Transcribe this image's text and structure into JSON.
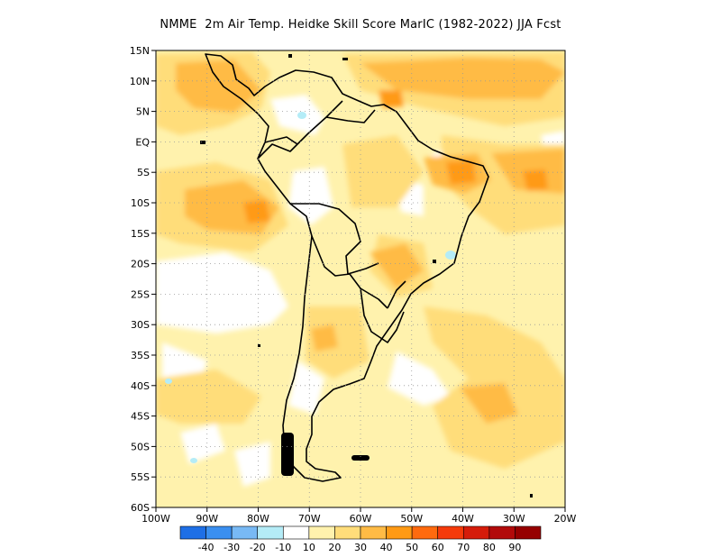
{
  "title": "NMME  2m Air Temp. Heidke Skill Score MarIC (1982-2022) JJA Fcst",
  "map": {
    "lon_range": [
      -100,
      -20
    ],
    "lat_range": [
      -60,
      15
    ],
    "lat_ticks": [
      {
        "lat": 15,
        "label": "15N"
      },
      {
        "lat": 10,
        "label": "10N"
      },
      {
        "lat": 5,
        "label": "5N"
      },
      {
        "lat": 0,
        "label": "EQ"
      },
      {
        "lat": -5,
        "label": "5S"
      },
      {
        "lat": -10,
        "label": "10S"
      },
      {
        "lat": -15,
        "label": "15S"
      },
      {
        "lat": -20,
        "label": "20S"
      },
      {
        "lat": -25,
        "label": "25S"
      },
      {
        "lat": -30,
        "label": "30S"
      },
      {
        "lat": -35,
        "label": "35S"
      },
      {
        "lat": -40,
        "label": "40S"
      },
      {
        "lat": -45,
        "label": "45S"
      },
      {
        "lat": -50,
        "label": "50S"
      },
      {
        "lat": -55,
        "label": "55S"
      },
      {
        "lat": -60,
        "label": "60S"
      }
    ],
    "lon_ticks": [
      {
        "lon": -100,
        "label": "100W"
      },
      {
        "lon": -90,
        "label": "90W"
      },
      {
        "lon": -80,
        "label": "80W"
      },
      {
        "lon": -70,
        "label": "70W"
      },
      {
        "lon": -60,
        "label": "60W"
      },
      {
        "lon": -50,
        "label": "50W"
      },
      {
        "lon": -40,
        "label": "40W"
      },
      {
        "lon": -30,
        "label": "30W"
      },
      {
        "lon": -20,
        "label": "20W"
      }
    ],
    "grid": true,
    "land_outline_color": "#000000"
  },
  "colorbar": {
    "labels": [
      "-40",
      "-30",
      "-20",
      "-10",
      "10",
      "20",
      "30",
      "40",
      "50",
      "60",
      "70",
      "80",
      "90"
    ],
    "colors": [
      "#1e6fe6",
      "#3a8ff0",
      "#78b9f5",
      "#b4ecf7",
      "#ffffff",
      "#fff2ad",
      "#ffdd7a",
      "#ffbb45",
      "#ff9a14",
      "#ff6a0e",
      "#f53a0a",
      "#d51c0a",
      "#b20a0a",
      "#960000"
    ]
  }
}
